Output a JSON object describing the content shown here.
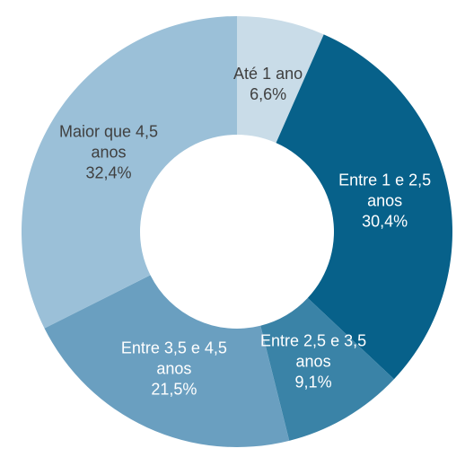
{
  "chart_data": {
    "type": "donut",
    "categories": [
      "Até 1 ano",
      "Entre 1 e 2,5 anos",
      "Entre 2,5 e 3,5 anos",
      "Entre 3,5 e 4,5 anos",
      "Maior que 4,5 anos"
    ],
    "values": [
      6.6,
      30.4,
      9.1,
      21.5,
      32.4
    ],
    "value_labels": [
      "6,6%",
      "30,4%",
      "9,1%",
      "21,5%",
      "32,4%"
    ],
    "colors": [
      "#c9dce8",
      "#07618a",
      "#3a83a7",
      "#6a9fc0",
      "#9bc0d8"
    ],
    "label_colors": [
      "#404040",
      "#ffffff",
      "#ffffff",
      "#ffffff",
      "#404040"
    ]
  }
}
